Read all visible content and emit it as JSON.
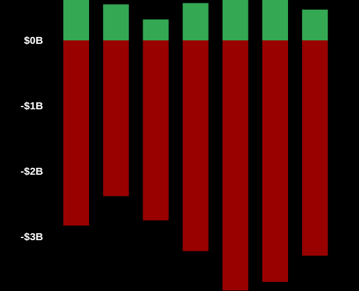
{
  "chart_data": {
    "type": "bar",
    "stacked": true,
    "grid": false,
    "ylim": [
      -3.82,
      0.62
    ],
    "y_ticks": [
      {
        "value": 0,
        "label": "$0B"
      },
      {
        "value": -1,
        "label": "-$1B"
      },
      {
        "value": -2,
        "label": "-$2B"
      },
      {
        "value": -3,
        "label": "-$3B"
      }
    ],
    "categories": [
      "",
      "",
      "",
      "",
      "",
      "",
      ""
    ],
    "series": [
      {
        "color": "#34a853",
        "values": [
          0.62,
          0.55,
          0.32,
          0.57,
          0.62,
          0.62,
          0.47
        ]
      },
      {
        "color": "#990000",
        "values": [
          -2.83,
          -2.38,
          -2.75,
          -3.22,
          -3.82,
          -3.69,
          -3.29
        ]
      }
    ]
  }
}
